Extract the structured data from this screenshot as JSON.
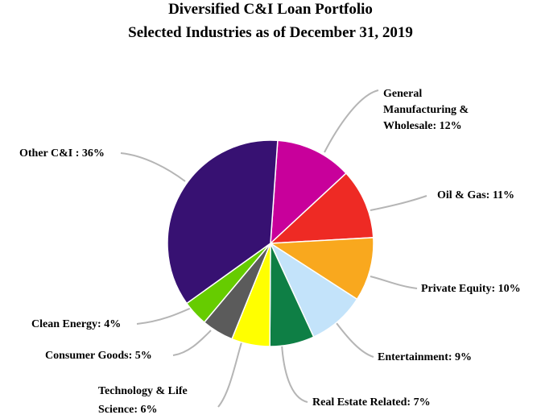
{
  "chart_data": {
    "type": "pie",
    "title": [
      "Diversified C&I Loan Portfolio",
      "Selected Industries as of December 31, 2019"
    ],
    "unit": "%",
    "slices": [
      {
        "name": "general-manufacturing-wholesale",
        "label_lines": [
          "General",
          "Manufacturing &",
          "Wholesale: 12%"
        ],
        "value": 12,
        "color": "#C8009B"
      },
      {
        "name": "oil-gas",
        "label_lines": [
          "Oil & Gas: 11%"
        ],
        "value": 11,
        "color": "#EE2A24"
      },
      {
        "name": "private-equity",
        "label_lines": [
          "Private Equity: 10%"
        ],
        "value": 10,
        "color": "#F9A81E"
      },
      {
        "name": "entertainment",
        "label_lines": [
          "Entertainment: 9%"
        ],
        "value": 9,
        "color": "#C3E3FA"
      },
      {
        "name": "real-estate-related",
        "label_lines": [
          "Real Estate Related: 7%"
        ],
        "value": 7,
        "color": "#0E7F45"
      },
      {
        "name": "technology-life-science",
        "label_lines": [
          "Technology & Life",
          "Science: 6%"
        ],
        "value": 6,
        "color": "#FFFF00"
      },
      {
        "name": "consumer-goods",
        "label_lines": [
          "Consumer Goods: 5%"
        ],
        "value": 5,
        "color": "#5B5B5B"
      },
      {
        "name": "clean-energy",
        "label_lines": [
          "Clean Energy: 4%"
        ],
        "value": 4,
        "color": "#66CC00"
      },
      {
        "name": "other-ci",
        "label_lines": [
          "Other C&I : 36%"
        ],
        "value": 36,
        "color": "#371172"
      }
    ],
    "leader_color": "#B5B5B5"
  }
}
